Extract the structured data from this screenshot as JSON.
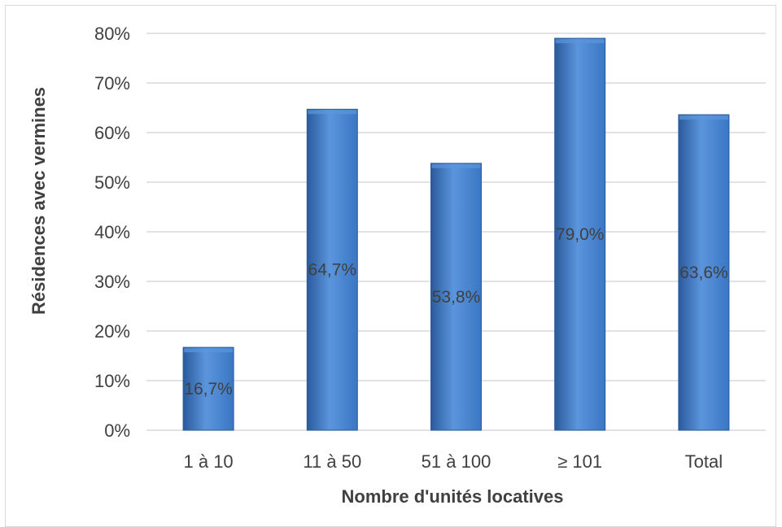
{
  "chart_data": {
    "type": "bar",
    "categories": [
      "1 à 10",
      "11 à 50",
      "51 à 100",
      "≥ 101",
      "Total"
    ],
    "values": [
      16.7,
      64.7,
      53.8,
      79.0,
      63.6
    ],
    "data_labels": [
      "16,7%",
      "64,7%",
      "53,8%",
      "79,0%",
      "63,6%"
    ],
    "xlabel": "Nombre d'unités locatives",
    "ylabel": "Résidences avec vermines",
    "ylim": [
      0,
      80
    ],
    "yticks": [
      0,
      10,
      20,
      30,
      40,
      50,
      60,
      70,
      80
    ],
    "ytick_labels": [
      "0%",
      "10%",
      "20%",
      "30%",
      "40%",
      "50%",
      "60%",
      "70%",
      "80%"
    ],
    "grid": true,
    "legend": "none",
    "colors": {
      "bar": "#3a76c4",
      "bar_dark": "#2a5a9c",
      "bar_light": "#5b95dc",
      "grid": "#d9d9d9",
      "text": "#404040"
    }
  }
}
